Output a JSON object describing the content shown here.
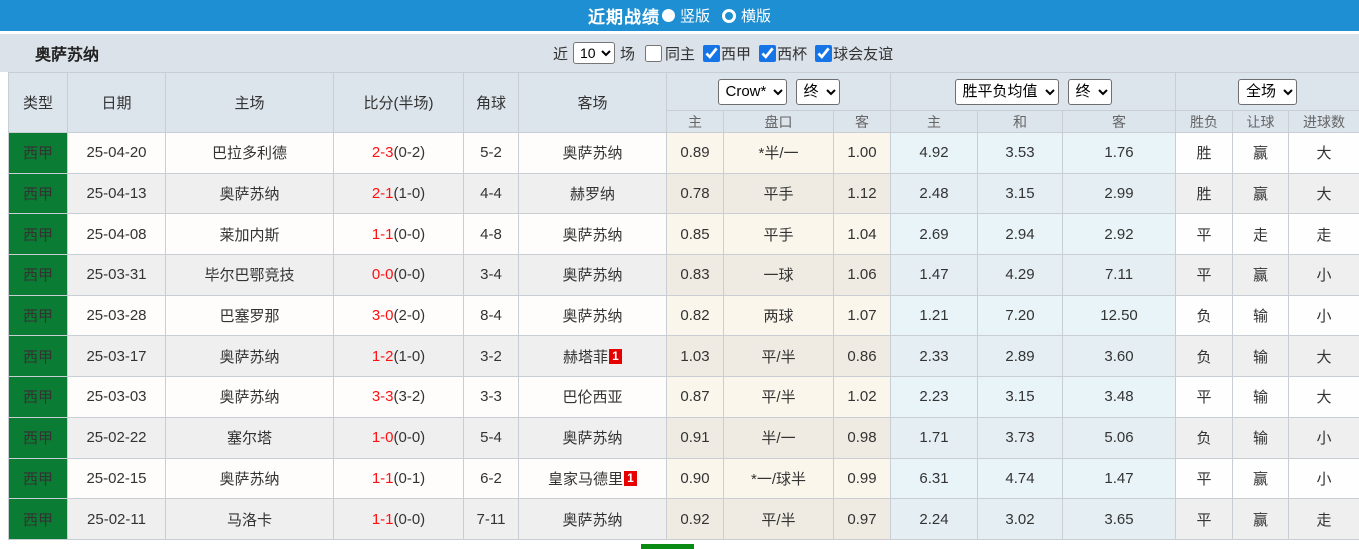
{
  "titlebar": {
    "title": "近期战绩",
    "vertical_label": "竖版",
    "horizontal_label": "横版",
    "selected_layout": "竖版"
  },
  "filterbar": {
    "team": "奥萨苏纳",
    "recent_label": "近",
    "recent_value": "10",
    "matches_label": "场",
    "same_home": {
      "label": "同主",
      "checked": false
    },
    "filters": [
      {
        "label": "西甲",
        "checked": true
      },
      {
        "label": "西杯",
        "checked": true
      },
      {
        "label": "球会友谊",
        "checked": true
      }
    ]
  },
  "table": {
    "headers": {
      "type": "类型",
      "date": "日期",
      "home": "主场",
      "score": "比分(半场)",
      "corner": "角球",
      "away": "客场"
    },
    "selects": {
      "odds_company": "Crow*",
      "odds_company_time": "终",
      "avg_label": "胜平负均值",
      "avg_time": "终",
      "scope": "全场"
    },
    "sub_headers": [
      "主",
      "盘口",
      "客",
      "主",
      "和",
      "客",
      "胜负",
      "让球",
      "进球数"
    ],
    "rows": [
      {
        "league": "西甲",
        "date": "25-04-20",
        "home": "巴拉多利德",
        "home_is_focus": false,
        "score": "2-3",
        "half": "(0-2)",
        "corner": "5-2",
        "away": "奥萨苏纳",
        "away_is_focus": true,
        "away_red_card": "",
        "odds_home": "0.89",
        "handicap": "*半/一",
        "handicap_red": true,
        "odds_away": "1.00",
        "avg_win": "4.92",
        "avg_draw": "3.53",
        "avg_lose": "1.76",
        "result": {
          "text": "胜",
          "color": "red"
        },
        "handicap_result": {
          "text": "赢",
          "color": "red"
        },
        "goals_result": {
          "text": "大",
          "color": "red"
        }
      },
      {
        "league": "西甲",
        "date": "25-04-13",
        "home": "奥萨苏纳",
        "home_is_focus": true,
        "score": "2-1",
        "half": "(1-0)",
        "corner": "4-4",
        "away": "赫罗纳",
        "away_is_focus": false,
        "away_red_card": "",
        "odds_home": "0.78",
        "handicap": "平手",
        "handicap_red": false,
        "odds_away": "1.12",
        "avg_win": "2.48",
        "avg_draw": "3.15",
        "avg_lose": "2.99",
        "result": {
          "text": "胜",
          "color": "red"
        },
        "handicap_result": {
          "text": "赢",
          "color": "red"
        },
        "goals_result": {
          "text": "大",
          "color": "red"
        }
      },
      {
        "league": "西甲",
        "date": "25-04-08",
        "home": "莱加内斯",
        "home_is_focus": false,
        "score": "1-1",
        "half": "(0-0)",
        "corner": "4-8",
        "away": "奥萨苏纳",
        "away_is_focus": true,
        "away_red_card": "",
        "odds_home": "0.85",
        "handicap": "平手",
        "handicap_red": false,
        "odds_away": "1.04",
        "avg_win": "2.69",
        "avg_draw": "2.94",
        "avg_lose": "2.92",
        "result": {
          "text": "平",
          "color": "blue"
        },
        "handicap_result": {
          "text": "走",
          "color": "purple"
        },
        "goals_result": {
          "text": "走",
          "color": "purple"
        }
      },
      {
        "league": "西甲",
        "date": "25-03-31",
        "home": "毕尔巴鄂竞技",
        "home_is_focus": false,
        "score": "0-0",
        "half": "(0-0)",
        "corner": "3-4",
        "away": "奥萨苏纳",
        "away_is_focus": true,
        "away_red_card": "",
        "odds_home": "0.83",
        "handicap": "一球",
        "handicap_red": false,
        "odds_away": "1.06",
        "avg_win": "1.47",
        "avg_draw": "4.29",
        "avg_lose": "7.11",
        "result": {
          "text": "平",
          "color": "blue"
        },
        "handicap_result": {
          "text": "赢",
          "color": "red"
        },
        "goals_result": {
          "text": "小",
          "color": "green"
        }
      },
      {
        "league": "西甲",
        "date": "25-03-28",
        "home": "巴塞罗那",
        "home_is_focus": false,
        "score": "3-0",
        "half": "(2-0)",
        "corner": "8-4",
        "away": "奥萨苏纳",
        "away_is_focus": true,
        "away_red_card": "",
        "odds_home": "0.82",
        "handicap": "两球",
        "handicap_red": false,
        "odds_away": "1.07",
        "avg_win": "1.21",
        "avg_draw": "7.20",
        "avg_lose": "12.50",
        "result": {
          "text": "负",
          "color": "green"
        },
        "handicap_result": {
          "text": "输",
          "color": "green"
        },
        "goals_result": {
          "text": "小",
          "color": "green"
        }
      },
      {
        "league": "西甲",
        "date": "25-03-17",
        "home": "奥萨苏纳",
        "home_is_focus": true,
        "score": "1-2",
        "half": "(1-0)",
        "corner": "3-2",
        "away": "赫塔菲",
        "away_is_focus": false,
        "away_red_card": "1",
        "odds_home": "1.03",
        "handicap": "平/半",
        "handicap_red": false,
        "odds_away": "0.86",
        "avg_win": "2.33",
        "avg_draw": "2.89",
        "avg_lose": "3.60",
        "result": {
          "text": "负",
          "color": "green"
        },
        "handicap_result": {
          "text": "输",
          "color": "green"
        },
        "goals_result": {
          "text": "大",
          "color": "red"
        }
      },
      {
        "league": "西甲",
        "date": "25-03-03",
        "home": "奥萨苏纳",
        "home_is_focus": true,
        "score": "3-3",
        "half": "(3-2)",
        "corner": "3-3",
        "away": "巴伦西亚",
        "away_is_focus": false,
        "away_red_card": "",
        "odds_home": "0.87",
        "handicap": "平/半",
        "handicap_red": false,
        "odds_away": "1.02",
        "avg_win": "2.23",
        "avg_draw": "3.15",
        "avg_lose": "3.48",
        "result": {
          "text": "平",
          "color": "blue"
        },
        "handicap_result": {
          "text": "输",
          "color": "green"
        },
        "goals_result": {
          "text": "大",
          "color": "red"
        }
      },
      {
        "league": "西甲",
        "date": "25-02-22",
        "home": "塞尔塔",
        "home_is_focus": false,
        "score": "1-0",
        "half": "(0-0)",
        "corner": "5-4",
        "away": "奥萨苏纳",
        "away_is_focus": true,
        "away_red_card": "",
        "odds_home": "0.91",
        "handicap": "半/一",
        "handicap_red": false,
        "odds_away": "0.98",
        "avg_win": "1.71",
        "avg_draw": "3.73",
        "avg_lose": "5.06",
        "result": {
          "text": "负",
          "color": "green"
        },
        "handicap_result": {
          "text": "输",
          "color": "green"
        },
        "goals_result": {
          "text": "小",
          "color": "green"
        }
      },
      {
        "league": "西甲",
        "date": "25-02-15",
        "home": "奥萨苏纳",
        "home_is_focus": true,
        "score": "1-1",
        "half": "(0-1)",
        "corner": "6-2",
        "away": "皇家马德里",
        "away_is_focus": false,
        "away_red_card": "1",
        "odds_home": "0.90",
        "handicap": "*一/球半",
        "handicap_red": true,
        "odds_away": "0.99",
        "avg_win": "6.31",
        "avg_draw": "4.74",
        "avg_lose": "1.47",
        "result": {
          "text": "平",
          "color": "blue"
        },
        "handicap_result": {
          "text": "赢",
          "color": "red"
        },
        "goals_result": {
          "text": "小",
          "color": "green"
        }
      },
      {
        "league": "西甲",
        "date": "25-02-11",
        "home": "马洛卡",
        "home_is_focus": false,
        "score": "1-1",
        "half": "(0-0)",
        "corner": "7-11",
        "away": "奥萨苏纳",
        "away_is_focus": true,
        "away_red_card": "",
        "odds_home": "0.92",
        "handicap": "平/半",
        "handicap_red": false,
        "odds_away": "0.97",
        "avg_win": "2.24",
        "avg_draw": "3.02",
        "avg_lose": "3.65",
        "result": {
          "text": "平",
          "color": "blue"
        },
        "handicap_result": {
          "text": "赢",
          "color": "red"
        },
        "goals_result": {
          "text": "走",
          "color": "purple"
        }
      }
    ]
  },
  "colors": {
    "titlebar_blue": "#1d8fd2",
    "filterbar_gray": "#dbe2e9",
    "checkbox_blue": "#1574e6",
    "league_cell_green": "#0b7c33",
    "focus_team_green": "#55a055",
    "score_red": "#ff1010",
    "result_win_red": "#ee6f6f",
    "result_draw_blue": "#7a8ee2",
    "result_lose_green": "#7fa07f",
    "result_zou_purple": "#4f3fd9",
    "more_button_green": "#0a8c14"
  }
}
